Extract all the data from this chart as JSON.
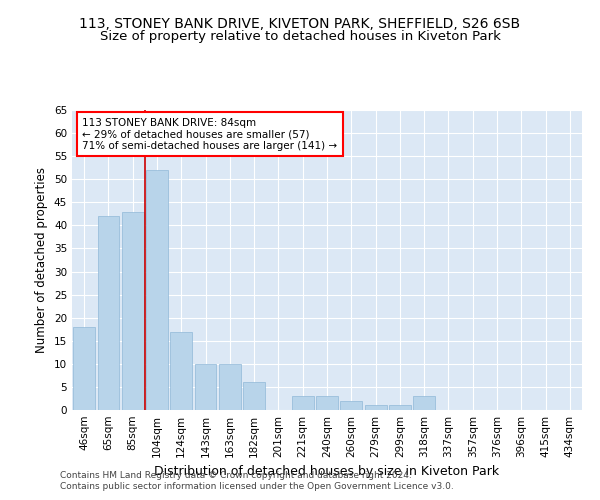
{
  "title1": "113, STONEY BANK DRIVE, KIVETON PARK, SHEFFIELD, S26 6SB",
  "title2": "Size of property relative to detached houses in Kiveton Park",
  "xlabel": "Distribution of detached houses by size in Kiveton Park",
  "ylabel": "Number of detached properties",
  "categories": [
    "46sqm",
    "65sqm",
    "85sqm",
    "104sqm",
    "124sqm",
    "143sqm",
    "163sqm",
    "182sqm",
    "201sqm",
    "221sqm",
    "240sqm",
    "260sqm",
    "279sqm",
    "299sqm",
    "318sqm",
    "337sqm",
    "357sqm",
    "376sqm",
    "396sqm",
    "415sqm",
    "434sqm"
  ],
  "values": [
    18,
    42,
    43,
    52,
    17,
    10,
    10,
    6,
    0,
    3,
    3,
    2,
    1,
    1,
    3,
    0,
    0,
    0,
    0,
    0,
    0
  ],
  "bar_color": "#b8d4ea",
  "bar_edge_color": "#90b8d8",
  "vline_color": "#cc0000",
  "annotation_box_text": "113 STONEY BANK DRIVE: 84sqm\n← 29% of detached houses are smaller (57)\n71% of semi-detached houses are larger (141) →",
  "ylim": [
    0,
    65
  ],
  "yticks": [
    0,
    5,
    10,
    15,
    20,
    25,
    30,
    35,
    40,
    45,
    50,
    55,
    60,
    65
  ],
  "background_color": "#dce8f5",
  "footer1": "Contains HM Land Registry data © Crown copyright and database right 2024.",
  "footer2": "Contains public sector information licensed under the Open Government Licence v3.0.",
  "title_fontsize": 10,
  "subtitle_fontsize": 9.5,
  "xlabel_fontsize": 9,
  "ylabel_fontsize": 8.5,
  "tick_fontsize": 7.5,
  "footer_fontsize": 6.5
}
